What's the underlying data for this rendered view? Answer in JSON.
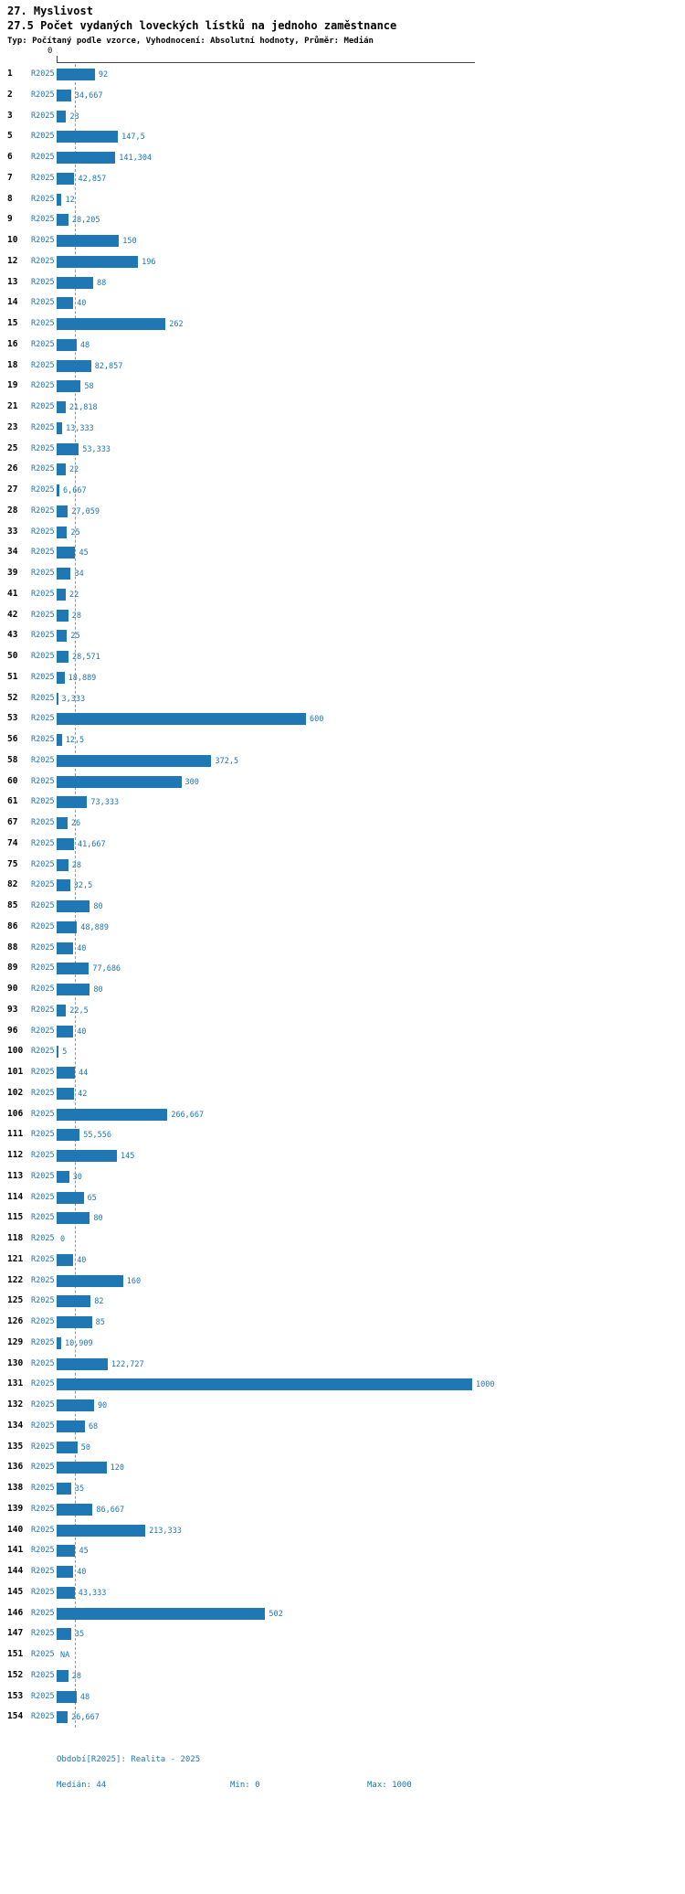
{
  "header": {
    "title": "27. Myslivost",
    "subtitle": "27.5 Počet vydaných loveckých lístků na jednoho zaměstnance",
    "meta": "Typ: Počítaný podle vzorce, Vyhodnocení: Absolutní hodnoty, Průměr: Medián"
  },
  "axis": {
    "zero_label": "0"
  },
  "chart_data": {
    "type": "bar",
    "orientation": "horizontal",
    "title": "27.5 Počet vydaných loveckých lístků na jednoho zaměstnance",
    "series_label": "R2025",
    "xlim": [
      0,
      1000
    ],
    "median_line_value": 44,
    "bar_color": "#1f77b4",
    "rows": [
      {
        "id": "1",
        "value_label": "92",
        "value": 92
      },
      {
        "id": "2",
        "value_label": "34,667",
        "value": 34.667
      },
      {
        "id": "3",
        "value_label": "23",
        "value": 23
      },
      {
        "id": "5",
        "value_label": "147,5",
        "value": 147.5
      },
      {
        "id": "6",
        "value_label": "141,304",
        "value": 141.304
      },
      {
        "id": "7",
        "value_label": "42,857",
        "value": 42.857
      },
      {
        "id": "8",
        "value_label": "12",
        "value": 12
      },
      {
        "id": "9",
        "value_label": "28,205",
        "value": 28.205
      },
      {
        "id": "10",
        "value_label": "150",
        "value": 150
      },
      {
        "id": "12",
        "value_label": "196",
        "value": 196
      },
      {
        "id": "13",
        "value_label": "88",
        "value": 88
      },
      {
        "id": "14",
        "value_label": "40",
        "value": 40
      },
      {
        "id": "15",
        "value_label": "262",
        "value": 262
      },
      {
        "id": "16",
        "value_label": "48",
        "value": 48
      },
      {
        "id": "18",
        "value_label": "82,857",
        "value": 82.857
      },
      {
        "id": "19",
        "value_label": "58",
        "value": 58
      },
      {
        "id": "21",
        "value_label": "21,818",
        "value": 21.818
      },
      {
        "id": "23",
        "value_label": "13,333",
        "value": 13.333
      },
      {
        "id": "25",
        "value_label": "53,333",
        "value": 53.333
      },
      {
        "id": "26",
        "value_label": "22",
        "value": 22
      },
      {
        "id": "27",
        "value_label": "6,667",
        "value": 6.667
      },
      {
        "id": "28",
        "value_label": "27,059",
        "value": 27.059
      },
      {
        "id": "33",
        "value_label": "25",
        "value": 25
      },
      {
        "id": "34",
        "value_label": "45",
        "value": 45
      },
      {
        "id": "39",
        "value_label": "34",
        "value": 34
      },
      {
        "id": "41",
        "value_label": "22",
        "value": 22
      },
      {
        "id": "42",
        "value_label": "28",
        "value": 28
      },
      {
        "id": "43",
        "value_label": "25",
        "value": 25
      },
      {
        "id": "50",
        "value_label": "28,571",
        "value": 28.571
      },
      {
        "id": "51",
        "value_label": "18,889",
        "value": 18.889
      },
      {
        "id": "52",
        "value_label": "3,333",
        "value": 3.333
      },
      {
        "id": "53",
        "value_label": "600",
        "value": 600
      },
      {
        "id": "56",
        "value_label": "12,5",
        "value": 12.5
      },
      {
        "id": "58",
        "value_label": "372,5",
        "value": 372.5
      },
      {
        "id": "60",
        "value_label": "300",
        "value": 300
      },
      {
        "id": "61",
        "value_label": "73,333",
        "value": 73.333
      },
      {
        "id": "67",
        "value_label": "26",
        "value": 26
      },
      {
        "id": "74",
        "value_label": "41,667",
        "value": 41.667
      },
      {
        "id": "75",
        "value_label": "28",
        "value": 28
      },
      {
        "id": "82",
        "value_label": "32,5",
        "value": 32.5
      },
      {
        "id": "85",
        "value_label": "80",
        "value": 80
      },
      {
        "id": "86",
        "value_label": "48,889",
        "value": 48.889
      },
      {
        "id": "88",
        "value_label": "40",
        "value": 40
      },
      {
        "id": "89",
        "value_label": "77,686",
        "value": 77.686
      },
      {
        "id": "90",
        "value_label": "80",
        "value": 80
      },
      {
        "id": "93",
        "value_label": "22,5",
        "value": 22.5
      },
      {
        "id": "96",
        "value_label": "40",
        "value": 40
      },
      {
        "id": "100",
        "value_label": "5",
        "value": 5
      },
      {
        "id": "101",
        "value_label": "44",
        "value": 44
      },
      {
        "id": "102",
        "value_label": "42",
        "value": 42
      },
      {
        "id": "106",
        "value_label": "266,667",
        "value": 266.667
      },
      {
        "id": "111",
        "value_label": "55,556",
        "value": 55.556
      },
      {
        "id": "112",
        "value_label": "145",
        "value": 145
      },
      {
        "id": "113",
        "value_label": "30",
        "value": 30
      },
      {
        "id": "114",
        "value_label": "65",
        "value": 65
      },
      {
        "id": "115",
        "value_label": "80",
        "value": 80
      },
      {
        "id": "118",
        "value_label": "0",
        "value": 0
      },
      {
        "id": "121",
        "value_label": "40",
        "value": 40
      },
      {
        "id": "122",
        "value_label": "160",
        "value": 160
      },
      {
        "id": "125",
        "value_label": "82",
        "value": 82
      },
      {
        "id": "126",
        "value_label": "85",
        "value": 85
      },
      {
        "id": "129",
        "value_label": "10,909",
        "value": 10.909
      },
      {
        "id": "130",
        "value_label": "122,727",
        "value": 122.727
      },
      {
        "id": "131",
        "value_label": "1000",
        "value": 1000
      },
      {
        "id": "132",
        "value_label": "90",
        "value": 90
      },
      {
        "id": "134",
        "value_label": "68",
        "value": 68
      },
      {
        "id": "135",
        "value_label": "50",
        "value": 50
      },
      {
        "id": "136",
        "value_label": "120",
        "value": 120
      },
      {
        "id": "138",
        "value_label": "35",
        "value": 35
      },
      {
        "id": "139",
        "value_label": "86,667",
        "value": 86.667
      },
      {
        "id": "140",
        "value_label": "213,333",
        "value": 213.333
      },
      {
        "id": "141",
        "value_label": "45",
        "value": 45
      },
      {
        "id": "144",
        "value_label": "40",
        "value": 40
      },
      {
        "id": "145",
        "value_label": "43,333",
        "value": 43.333
      },
      {
        "id": "146",
        "value_label": "502",
        "value": 502
      },
      {
        "id": "147",
        "value_label": "35",
        "value": 35
      },
      {
        "id": "151",
        "value_label": "NA",
        "value": null
      },
      {
        "id": "152",
        "value_label": "28",
        "value": 28
      },
      {
        "id": "153",
        "value_label": "48",
        "value": 48
      },
      {
        "id": "154",
        "value_label": "26,667",
        "value": 26.667
      }
    ]
  },
  "footer": {
    "period": "Období[R2025]: Realita - 2025",
    "median": "Medián: 44",
    "min": "Min: 0",
    "max": "Max: 1000"
  }
}
